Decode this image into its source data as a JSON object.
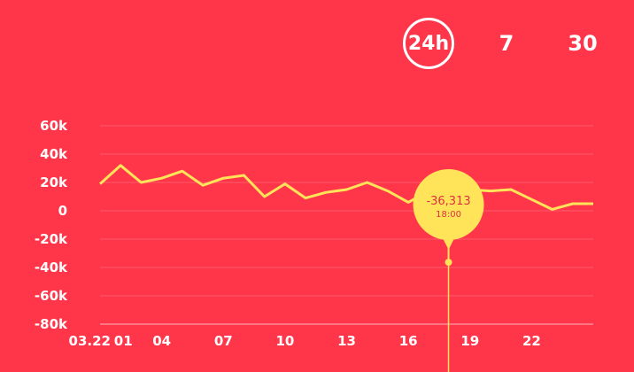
{
  "range_tabs": {
    "items": [
      {
        "label": "24h",
        "selected": true
      },
      {
        "label": "7",
        "selected": false
      },
      {
        "label": "30",
        "selected": false
      }
    ]
  },
  "colors": {
    "background": "#ff364a",
    "line": "#ffe45a",
    "tooltip": "#ffe45a",
    "tooltip_text": "#e0313f",
    "axis_text": "#ffffff"
  },
  "tooltip": {
    "value": "-36,313",
    "time": "18:00"
  },
  "chart_data": {
    "type": "line",
    "x": [
      0,
      1,
      2,
      3,
      4,
      5,
      6,
      7,
      8,
      9,
      10,
      11,
      12,
      13,
      14,
      15,
      16,
      17,
      18,
      19,
      20,
      21,
      22,
      23,
      24
    ],
    "values": [
      19000,
      32000,
      20000,
      23000,
      28000,
      18000,
      23000,
      25000,
      10000,
      19000,
      9000,
      13000,
      15000,
      20000,
      14000,
      6000,
      14000,
      -36313,
      15000,
      14000,
      15000,
      8000,
      1000,
      5000,
      5000
    ],
    "y_ticks": [
      "60k",
      "40k",
      "20k",
      "0",
      "-20k",
      "-40k",
      "-60k",
      "-80k"
    ],
    "y_tick_values": [
      60000,
      40000,
      20000,
      0,
      -20000,
      -40000,
      -60000,
      -80000
    ],
    "ylim": [
      -80000,
      60000
    ],
    "x_ticks": [
      "03.22",
      "01",
      "04",
      "07",
      "10",
      "13",
      "16",
      "19",
      "22"
    ],
    "x_tick_positions": [
      0,
      1,
      3,
      6,
      9,
      12,
      15,
      18,
      21
    ],
    "highlight_index": 17,
    "grid": true
  }
}
